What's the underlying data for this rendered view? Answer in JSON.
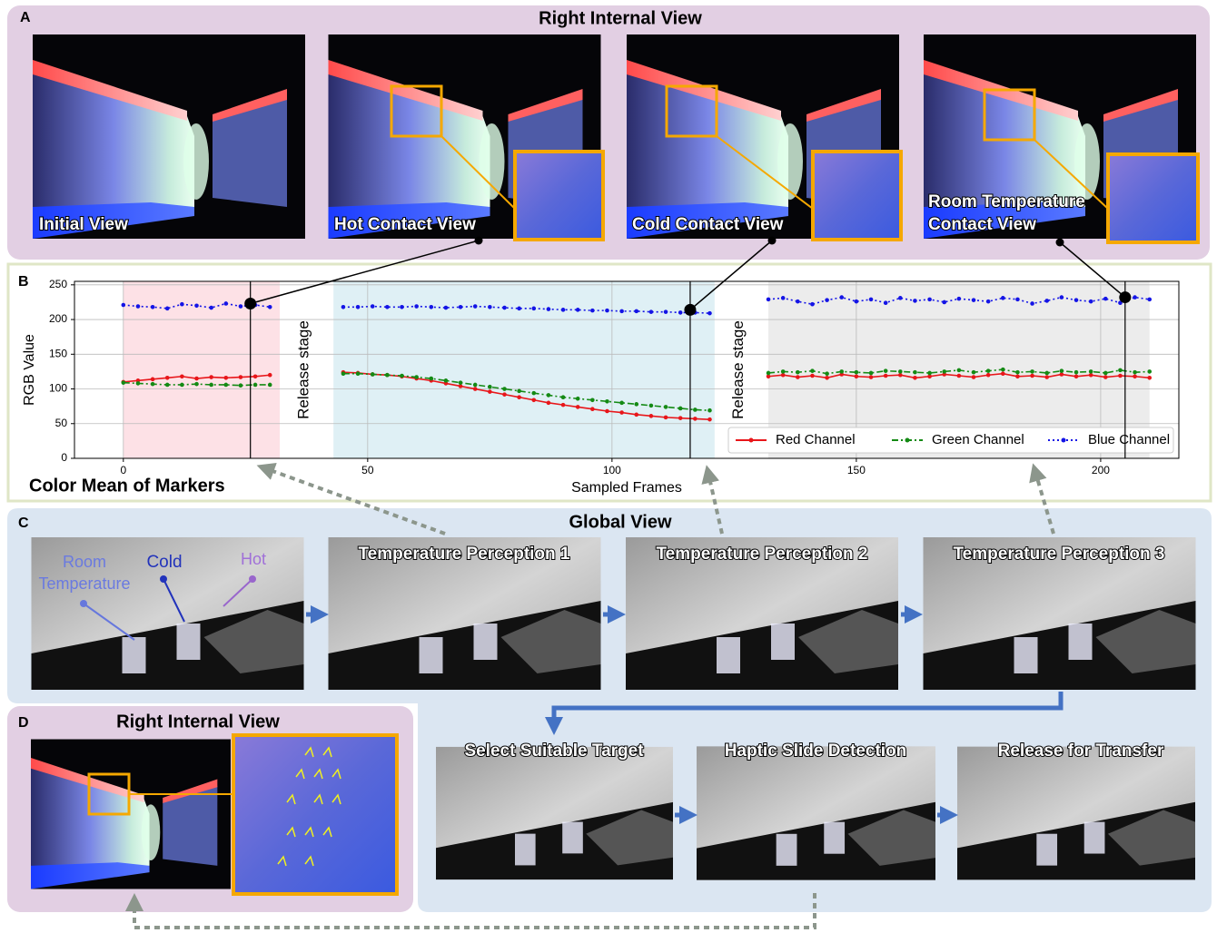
{
  "panel_a": {
    "letter": "A",
    "title": "Right Internal View",
    "view_labels": [
      [
        "Initial View"
      ],
      [
        "Hot Contact View"
      ],
      [
        "Cold Contact View"
      ],
      [
        "Room Temperature",
        "Contact View"
      ]
    ]
  },
  "panel_b": {
    "letter": "B",
    "caption": "Color Mean of Markers"
  },
  "chart_data": {
    "type": "line",
    "xlabel": "Sampled Frames",
    "ylabel": "RGB Value",
    "xlim": [
      -10,
      216
    ],
    "ylim": [
      0,
      255
    ],
    "xticks": [
      0,
      50,
      100,
      150,
      200
    ],
    "yticks": [
      0,
      50,
      100,
      150,
      200,
      250
    ],
    "grid": true,
    "legend": "lower right",
    "regions": [
      {
        "from": 0,
        "to": 32,
        "color": "#fde1e6"
      },
      {
        "from": 43,
        "to": 121,
        "color": "#dff0f5"
      },
      {
        "from": 132,
        "to": 210,
        "color": "#ececec"
      }
    ],
    "annotations": [
      {
        "text": "Release stage",
        "x": 37
      },
      {
        "text": "Release stage",
        "x": 126
      }
    ],
    "contact_points": [
      {
        "x": 26,
        "y": 223
      },
      {
        "x": 116,
        "y": 214
      },
      {
        "x": 205,
        "y": 232
      }
    ],
    "x": [
      0,
      3,
      6,
      9,
      12,
      15,
      18,
      21,
      24,
      27,
      30,
      33,
      36,
      39,
      42,
      45,
      48,
      51,
      54,
      57,
      60,
      63,
      66,
      69,
      72,
      75,
      78,
      81,
      84,
      87,
      90,
      93,
      96,
      99,
      102,
      105,
      108,
      111,
      114,
      117,
      120,
      123,
      126,
      129,
      132,
      135,
      138,
      141,
      144,
      147,
      150,
      153,
      156,
      159,
      162,
      165,
      168,
      171,
      174,
      177,
      180,
      183,
      186,
      189,
      192,
      195,
      198,
      201,
      204,
      207,
      210
    ],
    "series": [
      {
        "name": "Red Channel",
        "color": "#e8161a",
        "linestyle": "solid",
        "values": [
          110,
          112,
          114,
          116,
          118,
          115,
          117,
          116,
          117,
          118,
          120,
          null,
          null,
          null,
          null,
          124,
          123,
          121,
          120,
          118,
          115,
          112,
          108,
          104,
          100,
          96,
          92,
          88,
          84,
          80,
          77,
          74,
          71,
          68,
          66,
          63,
          61,
          59,
          58,
          57,
          56,
          null,
          null,
          null,
          118,
          120,
          117,
          119,
          116,
          121,
          118,
          117,
          119,
          120,
          116,
          118,
          121,
          119,
          117,
          120,
          122,
          118,
          119,
          117,
          121,
          118,
          120,
          117,
          119,
          118,
          116
        ]
      },
      {
        "name": "Green Channel",
        "color": "#148a14",
        "linestyle": "dashdot",
        "values": [
          109,
          108,
          107,
          106,
          106,
          107,
          106,
          106,
          105,
          106,
          106,
          null,
          null,
          null,
          null,
          122,
          122,
          121,
          120,
          119,
          117,
          115,
          112,
          109,
          106,
          103,
          100,
          97,
          94,
          91,
          88,
          86,
          84,
          82,
          80,
          78,
          76,
          74,
          72,
          70,
          69,
          null,
          null,
          null,
          123,
          125,
          124,
          126,
          122,
          125,
          124,
          123,
          126,
          125,
          124,
          123,
          125,
          127,
          124,
          126,
          128,
          124,
          125,
          123,
          126,
          124,
          125,
          123,
          127,
          124,
          125
        ]
      },
      {
        "name": "Blue Channel",
        "color": "#1414e6",
        "linestyle": "dotted",
        "values": [
          221,
          219,
          218,
          216,
          222,
          220,
          217,
          223,
          219,
          221,
          218,
          null,
          null,
          null,
          null,
          218,
          218,
          219,
          218,
          218,
          219,
          218,
          217,
          218,
          219,
          218,
          217,
          216,
          216,
          215,
          214,
          214,
          213,
          213,
          212,
          212,
          211,
          211,
          210,
          210,
          209,
          null,
          null,
          null,
          229,
          231,
          226,
          222,
          228,
          232,
          226,
          229,
          224,
          231,
          227,
          229,
          225,
          230,
          228,
          226,
          231,
          229,
          223,
          227,
          232,
          228,
          226,
          230,
          224,
          232,
          229
        ]
      }
    ]
  },
  "panel_c": {
    "letter": "C",
    "title": "Global View",
    "cup_labels": {
      "room": [
        "Room",
        "Temperature"
      ],
      "cold": "Cold",
      "hot": "Hot"
    },
    "steps": [
      "Temperature Perception 1",
      "Temperature Perception 2",
      "Temperature Perception 3",
      "Select Suitable Target",
      "Haptic Slide Detection",
      "Release for Transfer"
    ]
  },
  "panel_d": {
    "letter": "D",
    "title": "Right Internal View"
  }
}
